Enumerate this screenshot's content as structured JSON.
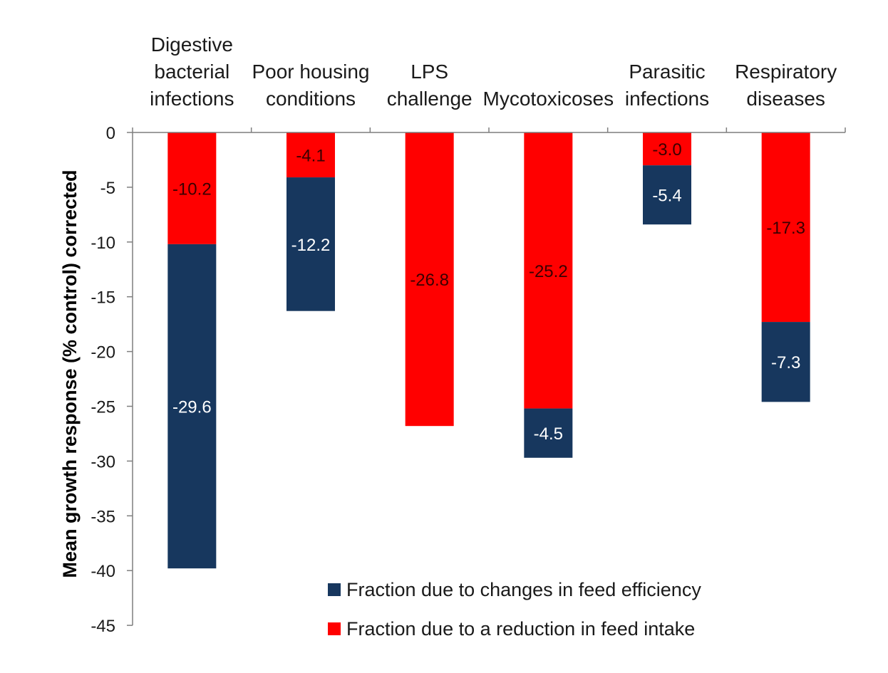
{
  "chart_data": {
    "type": "bar",
    "stacked": true,
    "title": "",
    "xlabel": "",
    "ylabel": "Mean growth response (% control) corrected",
    "ylim": [
      -45,
      0
    ],
    "yticks": [
      0,
      -5,
      -10,
      -15,
      -20,
      -25,
      -30,
      -35,
      -40,
      -45
    ],
    "ytick_labels": [
      "0",
      "-5",
      "-10",
      "-15",
      "-20",
      "-25",
      "-30",
      "-35",
      "-40",
      "-45"
    ],
    "categories": [
      [
        "Digestive",
        "bacterial",
        "infections"
      ],
      [
        "Poor housing",
        "conditions"
      ],
      [
        "LPS",
        "challenge"
      ],
      [
        "Mycotoxicoses"
      ],
      [
        "Parasitic",
        "infections"
      ],
      [
        "Respiratory",
        "diseases"
      ]
    ],
    "category_position": "top",
    "series": [
      {
        "name": "Fraction due to a reduction in feed intake",
        "color": "#ff0000",
        "label_color": "#3a0000",
        "values": [
          -10.2,
          -4.1,
          -26.8,
          -25.2,
          -3.0,
          -17.3
        ],
        "labels": [
          "-10.2",
          "-4.1",
          "-26.8",
          "-25.2",
          "-3.0",
          "-17.3"
        ]
      },
      {
        "name": "Fraction due to changes in feed efficiency",
        "color": "#17375e",
        "label_color": "#ffffff",
        "values": [
          -29.6,
          -12.2,
          0,
          -4.5,
          -5.4,
          -7.3
        ],
        "labels": [
          "-29.6",
          "-12.2",
          "",
          "-4.5",
          "-5.4",
          "-7.3"
        ]
      }
    ],
    "legend": {
      "placement": "bottom-right",
      "entries": [
        {
          "label": "Fraction due to changes in feed efficiency",
          "color": "#17375e"
        },
        {
          "label": "Fraction due to a reduction in feed intake",
          "color": "#ff0000"
        }
      ]
    },
    "grid": false
  }
}
